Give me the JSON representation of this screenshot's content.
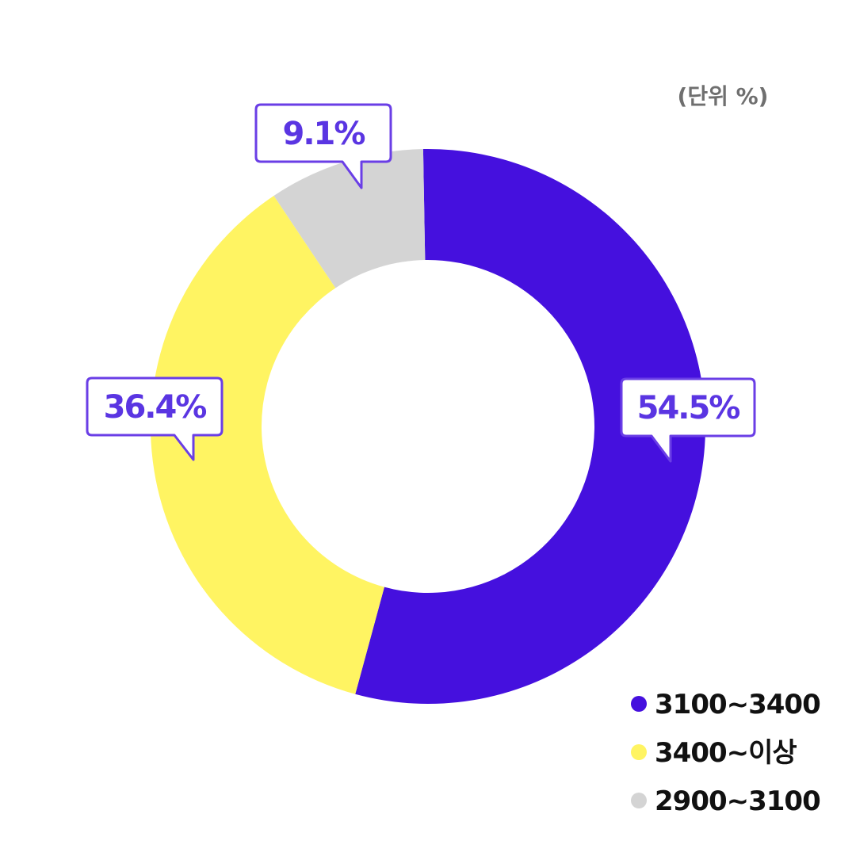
{
  "unit_label": "(단위 %)",
  "colors": {
    "accent_purple": "#4510de",
    "yellow": "#fff462",
    "gray": "#d4d4d4",
    "callout_border": "#6a3ee6",
    "callout_text": "#5a35e2"
  },
  "chart_data": {
    "type": "pie",
    "donut": true,
    "title": "",
    "unit": "(단위 %)",
    "legend_position": "bottom-right",
    "categories": [
      "3100~3400",
      "3400~이상",
      "2900~3100"
    ],
    "values": [
      54.5,
      36.4,
      9.1
    ],
    "value_labels": [
      "54.5%",
      "36.4%",
      "9.1%"
    ],
    "colors": [
      "#4510de",
      "#fff462",
      "#d4d4d4"
    ]
  }
}
